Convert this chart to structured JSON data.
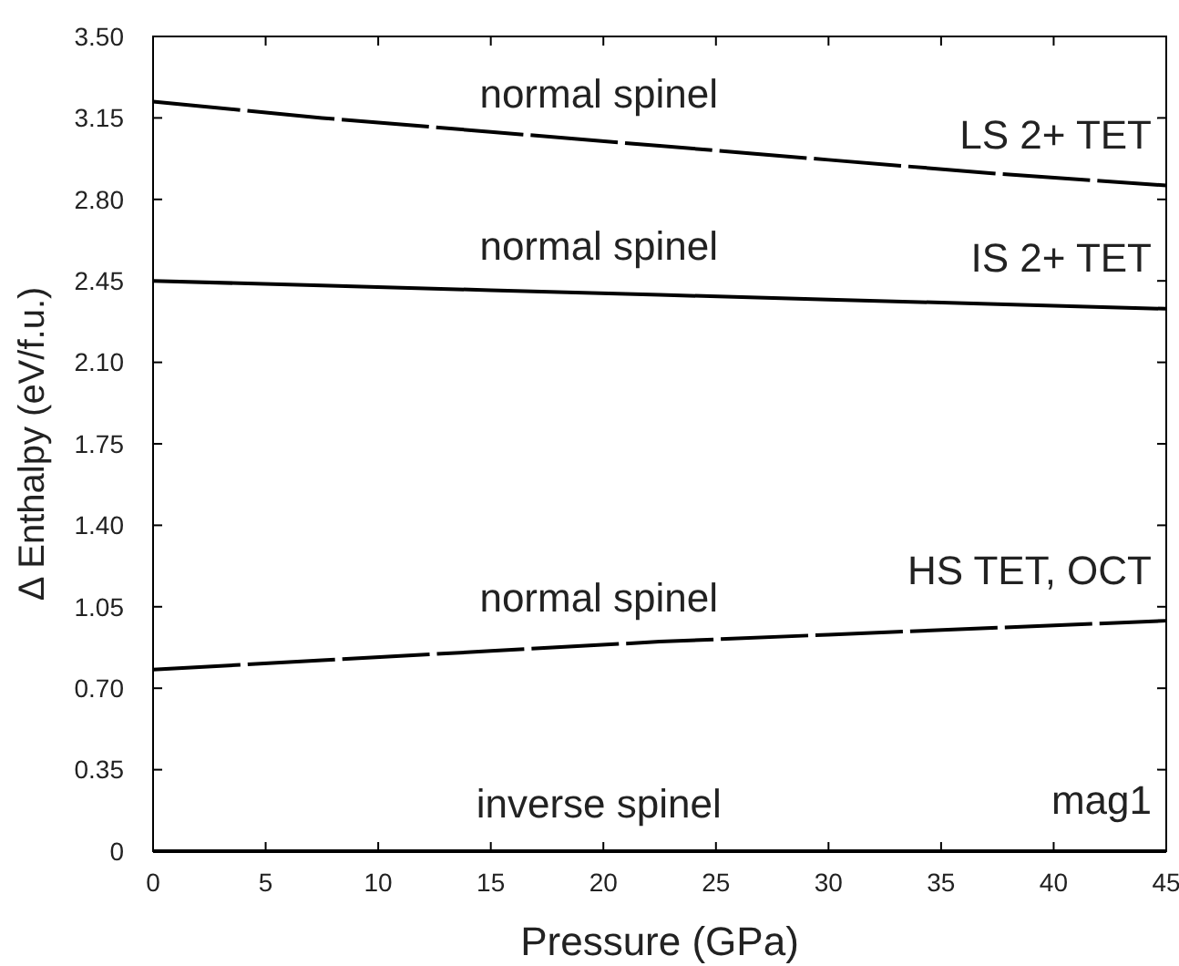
{
  "chart_data": {
    "type": "line",
    "xlabel": "Pressure (GPa)",
    "ylabel": "Δ Enthalpy (eV/f.u.)",
    "x": [
      0,
      7.5,
      15,
      22.5,
      30,
      37.5,
      45
    ],
    "series": [
      {
        "color": "#000000",
        "line_style": "dashed",
        "values": [
          3.22,
          3.15,
          3.09,
          3.03,
          2.97,
          2.91,
          2.86
        ]
      },
      {
        "color": "#000000",
        "line_style": "solid",
        "values": [
          2.45,
          2.43,
          2.41,
          2.39,
          2.37,
          2.35,
          2.33
        ]
      },
      {
        "color": "#000000",
        "line_style": "dashed",
        "values": [
          0.78,
          0.82,
          0.86,
          0.9,
          0.93,
          0.96,
          0.99
        ]
      },
      {
        "color": "#000000",
        "line_style": "solid",
        "values": [
          0,
          0,
          0,
          0,
          0,
          0,
          0
        ]
      }
    ],
    "annotations": [
      "normal spinel",
      "LS 2+ TET",
      "normal spinel",
      "IS 2+ TET",
      "normal spinel",
      "HS TET, OCT",
      "inverse spinel",
      "mag1"
    ],
    "xlim": [
      0,
      45
    ],
    "xticks": [
      0,
      5,
      10,
      15,
      20,
      25,
      30,
      35,
      40,
      45
    ],
    "ylim": [
      0,
      3.5
    ],
    "yticks": [
      {
        "value": 0,
        "label": "0"
      },
      {
        "value": 0.35,
        "label": "0.35"
      },
      {
        "value": 0.7,
        "label": "0.70"
      },
      {
        "value": 1.05,
        "label": "1.05"
      },
      {
        "value": 1.4,
        "label": "1.40"
      },
      {
        "value": 1.75,
        "label": "1.75"
      },
      {
        "value": 2.1,
        "label": "2.10"
      },
      {
        "value": 2.45,
        "label": "2.45"
      },
      {
        "value": 2.8,
        "label": "2.80"
      },
      {
        "value": 3.15,
        "label": "3.15"
      },
      {
        "value": 3.5,
        "label": "3.50"
      }
    ],
    "grid": false,
    "marker": "none"
  }
}
